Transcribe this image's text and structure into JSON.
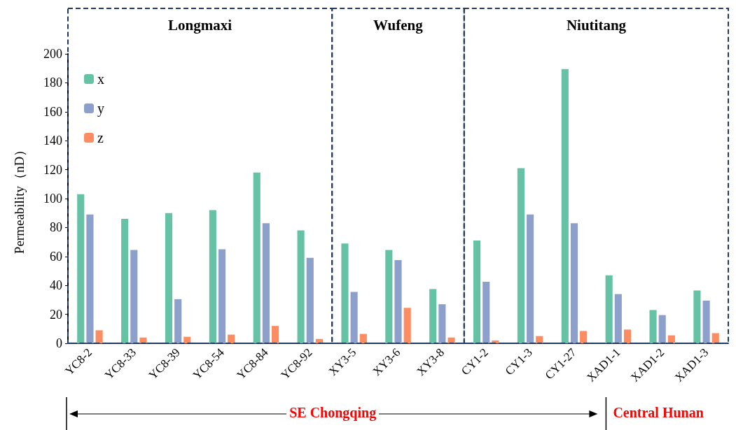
{
  "chart_data": {
    "type": "bar",
    "ylabel": "Permeability（nD）",
    "categories": [
      "YC8-2",
      "YC8-33",
      "YC8-39",
      "YC8-54",
      "YC8-84",
      "YC8-92",
      "XY3-5",
      "XY3-6",
      "XY3-8",
      "CY1-2",
      "CY1-3",
      "CY1-27",
      "XAD1-1",
      "XAD1-2",
      "XAD1-3"
    ],
    "series": [
      {
        "name": "x",
        "color": "#66c2a5",
        "values": [
          103,
          86,
          90,
          92,
          118,
          78,
          69,
          64.5,
          37.5,
          71,
          121,
          189.5,
          47,
          23,
          36.5
        ]
      },
      {
        "name": "y",
        "color": "#8da0cb",
        "values": [
          89,
          64.5,
          30.5,
          65,
          83,
          59,
          35.5,
          57.5,
          27,
          42.5,
          89,
          83,
          34,
          19.5,
          29.5
        ]
      },
      {
        "name": "z",
        "color": "#fc8d62",
        "values": [
          9,
          4,
          4.5,
          6,
          12,
          3,
          6.5,
          24.5,
          4,
          2,
          5,
          8.5,
          9.5,
          5.5,
          7
        ]
      }
    ],
    "ylim": [
      0,
      200
    ],
    "yticks": [
      0,
      20,
      40,
      60,
      80,
      100,
      120,
      140,
      160,
      180,
      200
    ],
    "annotations": [
      "Longmaxi",
      "Wufeng",
      "Niutitang",
      "SE Chongqing",
      "Central Hunan"
    ],
    "grid": false,
    "legend": "top left"
  }
}
